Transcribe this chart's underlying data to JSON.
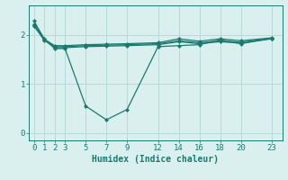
{
  "background_color": "#d9f0ee",
  "grid_color": "#b8dbd8",
  "line_color": "#1a7a70",
  "xlabel": "Humidex (Indice chaleur)",
  "xlabel_fontsize": 7,
  "tick_fontsize": 6.5,
  "ylim": [
    -0.15,
    2.6
  ],
  "xlim": [
    -0.5,
    24.0
  ],
  "yticks": [
    0,
    1,
    2
  ],
  "xticks": [
    0,
    1,
    2,
    3,
    5,
    7,
    9,
    12,
    14,
    16,
    18,
    20,
    23
  ],
  "lines": [
    {
      "x": [
        0,
        1,
        2,
        3,
        5,
        7,
        9,
        12,
        14,
        16,
        18,
        20,
        23
      ],
      "y": [
        2.28,
        1.92,
        1.72,
        1.72,
        0.55,
        0.27,
        0.48,
        1.76,
        1.78,
        1.8,
        1.9,
        1.82,
        1.93
      ],
      "marker": "D",
      "markersize": 2.0,
      "linewidth": 0.9
    },
    {
      "x": [
        0,
        1,
        2,
        3,
        5,
        7,
        9,
        12,
        14,
        16,
        18,
        20,
        23
      ],
      "y": [
        2.22,
        1.91,
        1.78,
        1.78,
        1.8,
        1.81,
        1.82,
        1.84,
        1.92,
        1.87,
        1.92,
        1.88,
        1.94
      ],
      "marker": "D",
      "markersize": 2.0,
      "linewidth": 0.9
    },
    {
      "x": [
        0,
        1,
        2,
        3,
        5,
        7,
        9,
        12,
        14,
        16,
        18,
        20,
        23
      ],
      "y": [
        2.2,
        1.9,
        1.76,
        1.76,
        1.78,
        1.79,
        1.8,
        1.82,
        1.88,
        1.84,
        1.88,
        1.85,
        1.93
      ],
      "marker": "D",
      "markersize": 2.0,
      "linewidth": 0.9
    },
    {
      "x": [
        0,
        1,
        2,
        3,
        5,
        7,
        9,
        12,
        14,
        16,
        18,
        20,
        23
      ],
      "y": [
        2.18,
        1.89,
        1.74,
        1.74,
        1.76,
        1.77,
        1.78,
        1.8,
        1.86,
        1.82,
        1.86,
        1.83,
        1.92
      ],
      "marker": "D",
      "markersize": 2.0,
      "linewidth": 0.9
    }
  ]
}
